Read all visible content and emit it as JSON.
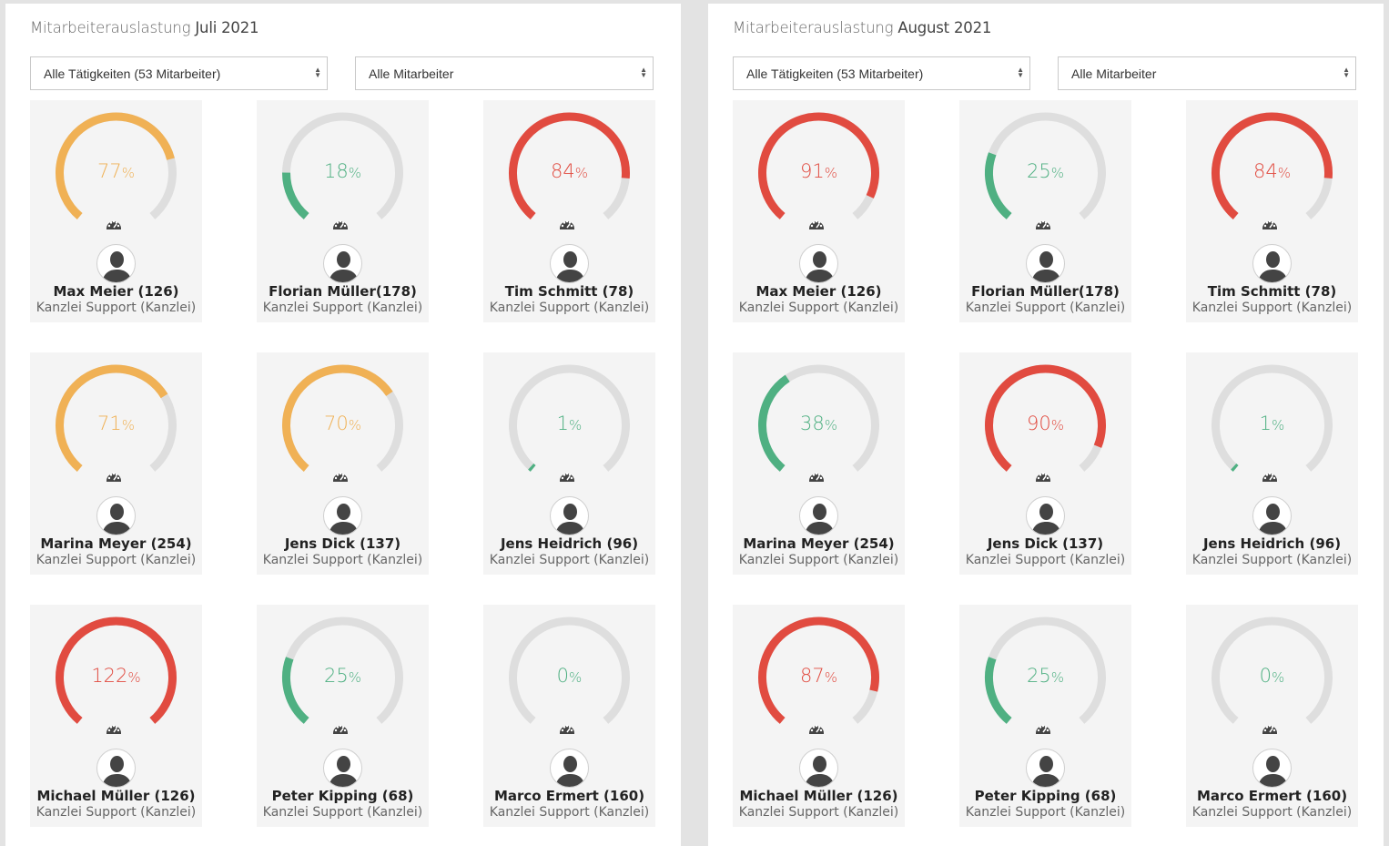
{
  "colors": {
    "orange": "#f0b155",
    "green": "#4fb082",
    "red": "#e14b40",
    "track": "#dedede"
  },
  "icons": {
    "gauge_footer": "speedometer-icon",
    "avatar": "user-avatar-icon"
  },
  "panels": [
    {
      "title_prefix": "Mitarbeiterauslastung",
      "title_period": "Juli 2021",
      "filter_activity": "Alle Tätigkeiten (53 Mitarbeiter)",
      "filter_employee": "Alle Mitarbeiter",
      "employees": [
        {
          "name": "Max Meier (126)",
          "role": "Kanzlei Support (Kanzlei)",
          "value": "77",
          "unit": "%",
          "status": "orange"
        },
        {
          "name": "Florian Müller(178)",
          "role": "Kanzlei Support (Kanzlei)",
          "value": "18",
          "unit": "%",
          "status": "green"
        },
        {
          "name": "Tim Schmitt (78)",
          "role": "Kanzlei Support (Kanzlei)",
          "value": "84",
          "unit": "%",
          "status": "red"
        },
        {
          "name": "Marina Meyer (254)",
          "role": "Kanzlei Support (Kanzlei)",
          "value": "71",
          "unit": "%",
          "status": "orange"
        },
        {
          "name": "Jens Dick (137)",
          "role": "Kanzlei Support (Kanzlei)",
          "value": "70",
          "unit": "%",
          "status": "orange"
        },
        {
          "name": "Jens Heidrich (96)",
          "role": "Kanzlei Support (Kanzlei)",
          "value": "1",
          "unit": "%",
          "status": "green"
        },
        {
          "name": "Michael Müller (126)",
          "role": "Kanzlei Support (Kanzlei)",
          "value": "122",
          "unit": "%",
          "status": "red"
        },
        {
          "name": "Peter Kipping (68)",
          "role": "Kanzlei Support (Kanzlei)",
          "value": "25",
          "unit": "%",
          "status": "green"
        },
        {
          "name": "Marco Ermert (160)",
          "role": "Kanzlei Support (Kanzlei)",
          "value": "0",
          "unit": "%",
          "status": "green"
        }
      ]
    },
    {
      "title_prefix": "Mitarbeiterauslastung",
      "title_period": "August 2021",
      "filter_activity": "Alle Tätigkeiten (53 Mitarbeiter)",
      "filter_employee": "Alle Mitarbeiter",
      "employees": [
        {
          "name": "Max Meier (126)",
          "role": "Kanzlei Support (Kanzlei)",
          "value": "91",
          "unit": "%",
          "status": "red"
        },
        {
          "name": "Florian Müller(178)",
          "role": "Kanzlei Support (Kanzlei)",
          "value": "25",
          "unit": "%",
          "status": "green"
        },
        {
          "name": "Tim Schmitt (78)",
          "role": "Kanzlei Support (Kanzlei)",
          "value": "84",
          "unit": "%",
          "status": "red"
        },
        {
          "name": "Marina Meyer (254)",
          "role": "Kanzlei Support (Kanzlei)",
          "value": "38",
          "unit": "%",
          "status": "green"
        },
        {
          "name": "Jens Dick (137)",
          "role": "Kanzlei Support (Kanzlei)",
          "value": "90",
          "unit": "%",
          "status": "red"
        },
        {
          "name": "Jens Heidrich (96)",
          "role": "Kanzlei Support (Kanzlei)",
          "value": "1",
          "unit": "%",
          "status": "green"
        },
        {
          "name": "Michael Müller (126)",
          "role": "Kanzlei Support (Kanzlei)",
          "value": "87",
          "unit": "%",
          "status": "red"
        },
        {
          "name": "Peter Kipping (68)",
          "role": "Kanzlei Support (Kanzlei)",
          "value": "25",
          "unit": "%",
          "status": "green"
        },
        {
          "name": "Marco Ermert (160)",
          "role": "Kanzlei Support (Kanzlei)",
          "value": "0",
          "unit": "%",
          "status": "green"
        }
      ]
    }
  ]
}
